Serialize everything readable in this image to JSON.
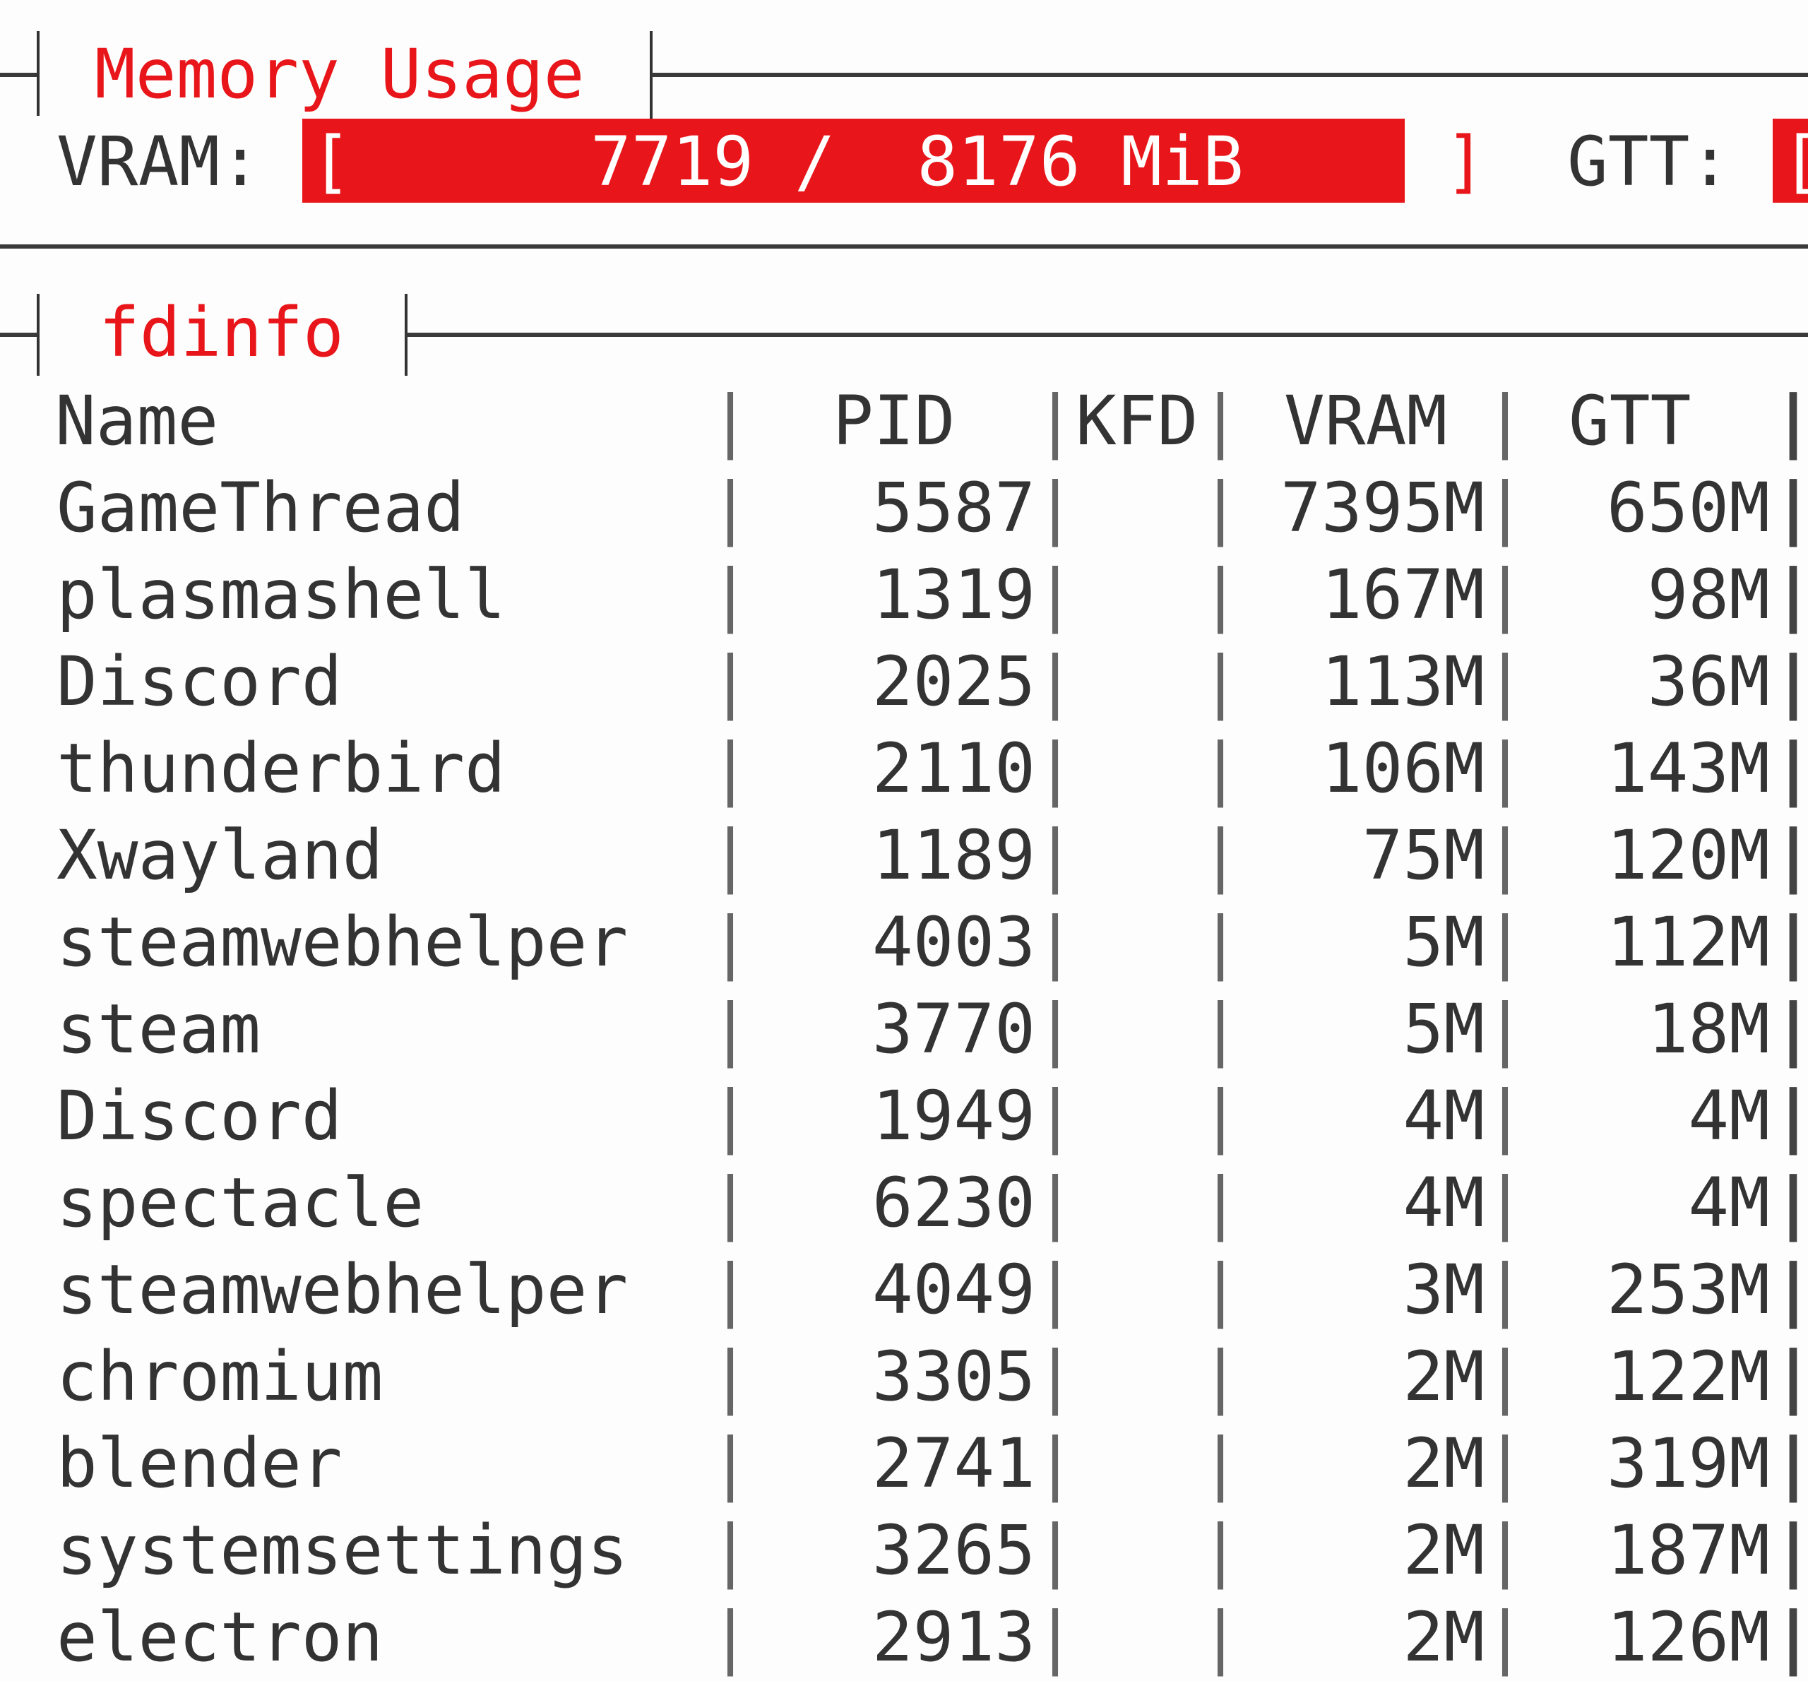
{
  "memory_panel": {
    "title": "Memory Usage",
    "vram_label": "VRAM:",
    "vram_bar_text": "7719 /  8176 MiB",
    "vram_used_mib": 7719,
    "vram_total_mib": 8176,
    "bracket_open": "[",
    "bracket_close": "]",
    "gtt_label": "GTT:"
  },
  "fdinfo_panel": {
    "title": "fdinfo",
    "columns": [
      "Name",
      "PID",
      "KFD",
      "VRAM",
      "GTT"
    ],
    "rows": [
      {
        "name": "GameThread",
        "pid": "5587",
        "kfd": "",
        "vram": "7395M",
        "gtt": "650M"
      },
      {
        "name": "plasmashell",
        "pid": "1319",
        "kfd": "",
        "vram": "167M",
        "gtt": "98M"
      },
      {
        "name": "Discord",
        "pid": "2025",
        "kfd": "",
        "vram": "113M",
        "gtt": "36M"
      },
      {
        "name": "thunderbird",
        "pid": "2110",
        "kfd": "",
        "vram": "106M",
        "gtt": "143M"
      },
      {
        "name": "Xwayland",
        "pid": "1189",
        "kfd": "",
        "vram": "75M",
        "gtt": "120M"
      },
      {
        "name": "steamwebhelper",
        "pid": "4003",
        "kfd": "",
        "vram": "5M",
        "gtt": "112M"
      },
      {
        "name": "steam",
        "pid": "3770",
        "kfd": "",
        "vram": "5M",
        "gtt": "18M"
      },
      {
        "name": "Discord",
        "pid": "1949",
        "kfd": "",
        "vram": "4M",
        "gtt": "4M"
      },
      {
        "name": "spectacle",
        "pid": "6230",
        "kfd": "",
        "vram": "4M",
        "gtt": "4M"
      },
      {
        "name": "steamwebhelper",
        "pid": "4049",
        "kfd": "",
        "vram": "3M",
        "gtt": "253M"
      },
      {
        "name": "chromium",
        "pid": "3305",
        "kfd": "",
        "vram": "2M",
        "gtt": "122M"
      },
      {
        "name": "blender",
        "pid": "2741",
        "kfd": "",
        "vram": "2M",
        "gtt": "319M"
      },
      {
        "name": "systemsettings",
        "pid": "3265",
        "kfd": "",
        "vram": "2M",
        "gtt": "187M"
      },
      {
        "name": "electron",
        "pid": "2913",
        "kfd": "",
        "vram": "2M",
        "gtt": "126M"
      }
    ],
    "separator": "|"
  },
  "colors": {
    "accent": "#e8161a",
    "text": "#333333"
  }
}
